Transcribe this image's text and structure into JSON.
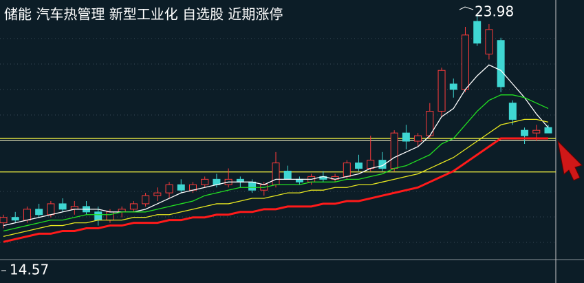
{
  "chart_data": {
    "type": "candlestick",
    "title": "储能 汽车热管理 新型工业化 自选股 近期涨停",
    "high_label": "23.98",
    "low_label": "14.57",
    "ylim": [
      14.57,
      23.98
    ],
    "up_color": "#ff3b3b",
    "down_color": "#3fd6d2",
    "open": [
      16.3,
      16.5,
      16.4,
      16.8,
      16.6,
      17.0,
      16.8,
      16.9,
      16.7,
      16.4,
      16.7,
      16.8,
      17.0,
      17.3,
      17.4,
      17.7,
      17.5,
      17.7,
      17.9,
      17.7,
      17.9,
      17.8,
      17.5,
      17.7,
      18.2,
      17.9,
      17.8,
      18.0,
      17.9,
      18.0,
      18.5,
      18.3,
      18.6,
      18.3,
      19.6,
      19.3,
      19.5,
      20.4,
      21.4,
      21.2,
      23.7,
      22.5,
      23.0,
      20.7,
      19.7,
      19.6,
      19.8
    ],
    "high": [
      16.6,
      16.7,
      16.9,
      17.0,
      17.1,
      17.2,
      17.1,
      17.1,
      16.9,
      16.8,
      16.9,
      17.1,
      17.4,
      17.6,
      17.8,
      17.9,
      17.8,
      18.0,
      18.1,
      18.3,
      18.0,
      17.9,
      17.8,
      18.9,
      18.4,
      18.0,
      18.1,
      18.2,
      18.1,
      18.6,
      18.8,
      19.5,
      18.9,
      19.7,
      19.9,
      19.6,
      20.7,
      22.0,
      21.6,
      23.5,
      23.98,
      23.6,
      23.1,
      20.8,
      19.8,
      19.9,
      19.9
    ],
    "low": [
      16.1,
      16.3,
      16.3,
      16.5,
      16.5,
      16.7,
      16.6,
      16.6,
      16.2,
      16.3,
      16.5,
      16.7,
      16.9,
      17.1,
      17.2,
      17.4,
      17.4,
      17.6,
      17.6,
      17.6,
      17.6,
      17.4,
      17.3,
      17.6,
      17.9,
      17.7,
      17.7,
      17.8,
      17.8,
      17.9,
      18.2,
      18.2,
      18.2,
      18.2,
      19.0,
      19.1,
      19.4,
      20.2,
      20.9,
      21.1,
      22.8,
      22.3,
      21.1,
      19.9,
      19.2,
      19.3,
      19.6
    ],
    "close": [
      16.5,
      16.4,
      16.8,
      16.6,
      17.0,
      16.8,
      16.9,
      16.7,
      16.4,
      16.7,
      16.8,
      17.0,
      17.3,
      17.4,
      17.7,
      17.5,
      17.7,
      17.9,
      17.7,
      17.9,
      17.8,
      17.5,
      17.7,
      18.5,
      17.9,
      17.8,
      18.0,
      17.9,
      18.0,
      18.5,
      18.3,
      18.6,
      18.3,
      19.6,
      19.3,
      19.5,
      20.4,
      21.9,
      21.2,
      23.2,
      22.9,
      23.4,
      21.3,
      20.1,
      19.5,
      19.7,
      19.6
    ],
    "series": [
      {
        "color": "#ffffff",
        "values": [
          16.2,
          16.3,
          16.4,
          16.5,
          16.6,
          16.7,
          16.8,
          16.8,
          16.8,
          16.7,
          16.7,
          16.7,
          16.8,
          17.0,
          17.2,
          17.4,
          17.5,
          17.6,
          17.7,
          17.8,
          17.8,
          17.8,
          17.7,
          17.9,
          17.9,
          17.9,
          17.9,
          18.0,
          17.9,
          18.0,
          18.1,
          18.3,
          18.4,
          18.7,
          18.9,
          19.1,
          19.5,
          20.2,
          20.5,
          21.2,
          21.7,
          22.1,
          21.9,
          21.4,
          20.9,
          20.3,
          19.8
        ]
      },
      {
        "color": "#22e022",
        "values": [
          16.0,
          16.1,
          16.2,
          16.3,
          16.4,
          16.4,
          16.5,
          16.6,
          16.6,
          16.6,
          16.7,
          16.7,
          16.7,
          16.8,
          16.9,
          17.0,
          17.1,
          17.3,
          17.4,
          17.5,
          17.6,
          17.6,
          17.6,
          17.7,
          17.7,
          17.7,
          17.8,
          17.8,
          17.8,
          17.9,
          17.9,
          18.0,
          18.1,
          18.3,
          18.4,
          18.6,
          18.8,
          19.2,
          19.4,
          19.9,
          20.4,
          20.8,
          21.0,
          21.0,
          20.9,
          20.7,
          20.5
        ]
      },
      {
        "color": "#e8e820",
        "values": [
          15.8,
          15.9,
          16.0,
          16.1,
          16.2,
          16.2,
          16.3,
          16.3,
          16.4,
          16.4,
          16.4,
          16.5,
          16.5,
          16.6,
          16.6,
          16.7,
          16.8,
          16.9,
          17.0,
          17.0,
          17.1,
          17.2,
          17.2,
          17.3,
          17.4,
          17.4,
          17.5,
          17.5,
          17.6,
          17.6,
          17.7,
          17.7,
          17.8,
          17.9,
          18.0,
          18.1,
          18.3,
          18.5,
          18.7,
          19.0,
          19.3,
          19.6,
          19.9,
          20.0,
          20.1,
          20.1,
          20.0
        ]
      },
      {
        "color": "#ff1a1a",
        "values": [
          15.6,
          15.7,
          15.8,
          15.9,
          15.9,
          16.0,
          16.0,
          16.1,
          16.1,
          16.2,
          16.2,
          16.3,
          16.3,
          16.3,
          16.4,
          16.4,
          16.5,
          16.5,
          16.6,
          16.6,
          16.7,
          16.7,
          16.8,
          16.8,
          16.9,
          16.9,
          16.9,
          17.0,
          17.0,
          17.1,
          17.1,
          17.2,
          17.3,
          17.4,
          17.5,
          17.6,
          17.8,
          18.0,
          18.2,
          18.5,
          18.8,
          19.1,
          19.4,
          19.4,
          19.4,
          19.4,
          19.4
        ]
      }
    ],
    "hlines": [
      {
        "value": 19.4,
        "color": "#e8e840"
      },
      {
        "value": 19.32,
        "color": "#d8d8b0"
      },
      {
        "value": 18.17,
        "color": "#e8e840"
      }
    ]
  }
}
